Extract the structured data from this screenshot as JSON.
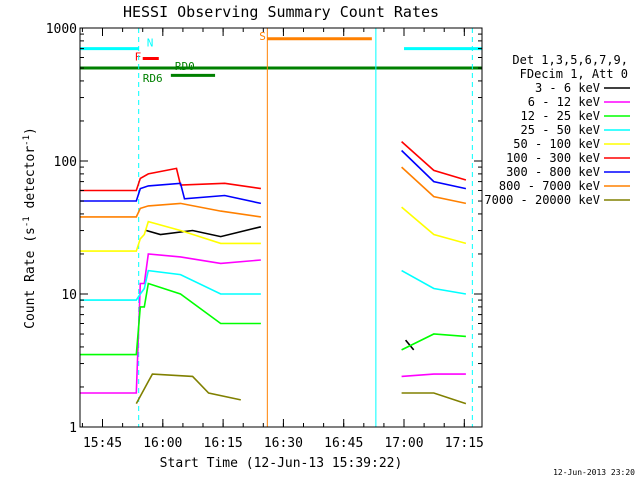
{
  "chart_data": {
    "type": "line",
    "title": "HESSI Observing Summary Count Rates",
    "xlabel": "Start Time (12-Jun-13 15:39:22)",
    "ylabel_main": "Count Rate (s",
    "ylabel_sup1": "-1",
    "ylabel_mid": " detector",
    "ylabel_sup2": "-1",
    "ylabel_end": ")",
    "yscale": "log",
    "ylim": [
      1,
      1000
    ],
    "xlim_minutes": [
      0,
      100
    ],
    "y_ticks": [
      {
        "value": 1,
        "label": "1"
      },
      {
        "value": 10,
        "label": "10"
      },
      {
        "value": 100,
        "label": "100"
      },
      {
        "value": 1000,
        "label": "1000"
      }
    ],
    "x_ticks": [
      {
        "t": 5.6,
        "label": "15:45"
      },
      {
        "t": 20.6,
        "label": "16:00"
      },
      {
        "t": 35.6,
        "label": "16:15"
      },
      {
        "t": 50.6,
        "label": "16:30"
      },
      {
        "t": 65.6,
        "label": "16:45"
      },
      {
        "t": 80.6,
        "label": "17:00"
      },
      {
        "t": 95.6,
        "label": "17:15"
      }
    ],
    "legend": {
      "position": "right",
      "header1": "Det 1,3,5,6,7,9,",
      "header2": "FDecim 1, Att 0"
    },
    "series": [
      {
        "name": "3 - 6 keV",
        "color": "#000000",
        "segments": [
          [
            [
              16.5,
              30
            ],
            [
              20,
              28
            ],
            [
              28,
              30
            ],
            [
              35,
              27
            ],
            [
              45,
              32
            ]
          ],
          [
            [
              81,
              4.5
            ],
            [
              83,
              3.8
            ]
          ]
        ]
      },
      {
        "name": "6 - 12 keV",
        "color": "#ff00ff",
        "segments": [
          [
            [
              0,
              1.8
            ],
            [
              14,
              1.8
            ],
            [
              15,
              12
            ],
            [
              16,
              12
            ],
            [
              17,
              20
            ],
            [
              25,
              19
            ],
            [
              35,
              17
            ],
            [
              45,
              18
            ]
          ],
          [
            [
              80,
              2.4
            ],
            [
              88,
              2.5
            ],
            [
              96,
              2.5
            ]
          ]
        ]
      },
      {
        "name": "12 - 25 keV",
        "color": "#00ff00",
        "segments": [
          [
            [
              0,
              3.5
            ],
            [
              14,
              3.5
            ],
            [
              15,
              8
            ],
            [
              16,
              8
            ],
            [
              17,
              12
            ],
            [
              25,
              10
            ],
            [
              35,
              6
            ],
            [
              45,
              6
            ]
          ],
          [
            [
              80,
              3.8
            ],
            [
              88,
              5
            ],
            [
              96,
              4.8
            ]
          ]
        ]
      },
      {
        "name": "25 - 50 keV",
        "color": "#00ffff",
        "segments": [
          [
            [
              0,
              9
            ],
            [
              14,
              9
            ],
            [
              15,
              10
            ],
            [
              16,
              11
            ],
            [
              17,
              15
            ],
            [
              25,
              14
            ],
            [
              35,
              10
            ],
            [
              45,
              10
            ]
          ],
          [
            [
              80,
              15
            ],
            [
              88,
              11
            ],
            [
              96,
              10
            ]
          ]
        ]
      },
      {
        "name": "50 - 100 keV",
        "color": "#ffff00",
        "segments": [
          [
            [
              0,
              21
            ],
            [
              14,
              21
            ],
            [
              15,
              26
            ],
            [
              16,
              28
            ],
            [
              17,
              35
            ],
            [
              25,
              30
            ],
            [
              35,
              24
            ],
            [
              45,
              24
            ]
          ],
          [
            [
              80,
              45
            ],
            [
              88,
              28
            ],
            [
              96,
              24
            ]
          ]
        ]
      },
      {
        "name": "100 - 300 keV",
        "color": "#ff0000",
        "segments": [
          [
            [
              0,
              60
            ],
            [
              14,
              60
            ],
            [
              15,
              74
            ],
            [
              17,
              80
            ],
            [
              24,
              88
            ],
            [
              25,
              66
            ],
            [
              36,
              68
            ],
            [
              45,
              62
            ]
          ],
          [
            [
              80,
              140
            ],
            [
              88,
              85
            ],
            [
              96,
              72
            ]
          ]
        ]
      },
      {
        "name": "300 - 800 keV",
        "color": "#0000ff",
        "segments": [
          [
            [
              0,
              50
            ],
            [
              14,
              50
            ],
            [
              15,
              62
            ],
            [
              17,
              65
            ],
            [
              25,
              68
            ],
            [
              26,
              52
            ],
            [
              36,
              55
            ],
            [
              45,
              48
            ]
          ],
          [
            [
              80,
              120
            ],
            [
              88,
              70
            ],
            [
              96,
              62
            ]
          ]
        ]
      },
      {
        "name": "800 - 7000 keV",
        "color": "#ff8000",
        "segments": [
          [
            [
              0,
              38
            ],
            [
              14,
              38
            ],
            [
              15,
              44
            ],
            [
              17,
              46
            ],
            [
              25,
              48
            ],
            [
              35,
              42
            ],
            [
              45,
              38
            ]
          ],
          [
            [
              80,
              90
            ],
            [
              88,
              54
            ],
            [
              96,
              48
            ]
          ]
        ]
      },
      {
        "name": "7000 - 20000 keV",
        "color": "#808000",
        "segments": [
          [
            [
              14,
              1.5
            ],
            [
              17,
              2.2
            ],
            [
              18,
              2.5
            ],
            [
              28,
              2.4
            ],
            [
              32,
              1.8
            ],
            [
              40,
              1.6
            ]
          ],
          [
            [
              80,
              1.8
            ],
            [
              88,
              1.8
            ],
            [
              96,
              1.5
            ]
          ]
        ]
      }
    ],
    "flag_bars": [
      {
        "label": "N",
        "color": "#00ffff",
        "y": 700,
        "ranges": [
          [
            0,
            14.6
          ],
          [
            80.6,
            100
          ]
        ],
        "label_t": 16.6,
        "label_y": 780
      },
      {
        "label": "F",
        "color": "#ff0000",
        "y": 590,
        "ranges": [
          [
            15.6,
            19.6
          ]
        ],
        "label_t": 13.6,
        "label_y": 610
      },
      {
        "label": "RD0",
        "color": "#008000",
        "y": 500,
        "ranges": [
          [
            0,
            100
          ]
        ],
        "label_t": 23.6,
        "label_y": 520
      },
      {
        "label": "RD6",
        "color": "#008000",
        "y": 440,
        "ranges": [
          [
            22.6,
            33.6
          ]
        ],
        "label_t": 15.6,
        "label_y": 420
      },
      {
        "label": "S",
        "color": "#ff8000",
        "y": 830,
        "ranges": [
          [
            46.6,
            72.6
          ]
        ],
        "label_t": 44.6,
        "label_y": 870
      }
    ],
    "vlines": [
      {
        "t": 0,
        "color": "#00ffff",
        "dash": false
      },
      {
        "t": 14.6,
        "color": "#00ffff",
        "dash": true
      },
      {
        "t": 46.6,
        "color": "#ff8000",
        "dash": false
      },
      {
        "t": 73.6,
        "color": "#00ffff",
        "dash": false
      },
      {
        "t": 97.6,
        "color": "#00ffff",
        "dash": true
      }
    ]
  },
  "footer": {
    "timestamp": "12-Jun-2013 23:20"
  }
}
